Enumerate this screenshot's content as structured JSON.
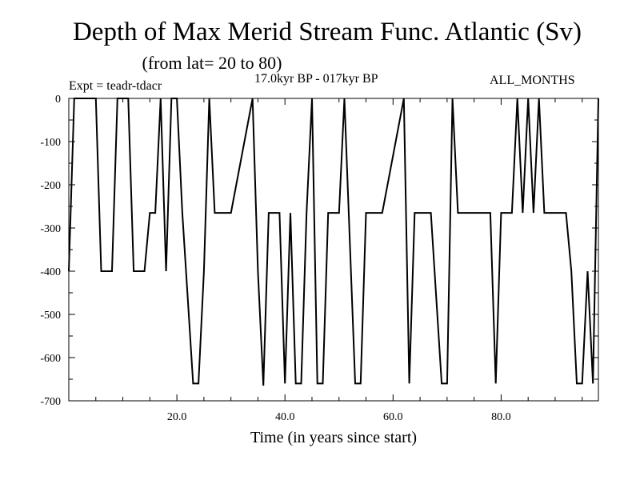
{
  "chart_data": {
    "type": "line",
    "title": "Depth of Max Merid Stream Func. Atlantic (Sv)",
    "subtitle": "(from lat= 20 to 80)",
    "experiment": "Expt = teadr-tdacr",
    "period": "17.0kyr BP - 017kyr BP",
    "months": "ALL_MONTHS",
    "xlabel": "Time (in years since start)",
    "ylabel": "",
    "xlim": [
      0,
      98
    ],
    "ylim": [
      -700,
      0
    ],
    "x_ticks": [
      20,
      40,
      60,
      80
    ],
    "x_tick_labels": [
      "20.0",
      "40.0",
      "60.0",
      "80.0"
    ],
    "y_ticks": [
      0,
      -100,
      -200,
      -300,
      -400,
      -500,
      -600,
      -700
    ],
    "y_tick_labels": [
      "0",
      "-100",
      "-200",
      "-300",
      "-400",
      "-500",
      "-600",
      "-700"
    ],
    "grid": false,
    "series": [
      {
        "color": "#000000",
        "x": [
          0,
          1,
          5,
          6,
          7,
          8,
          9,
          11,
          12,
          13,
          14,
          15,
          16,
          17,
          18,
          19,
          20,
          21,
          22,
          23,
          24,
          25,
          26,
          27,
          28,
          29,
          30,
          34,
          35,
          36,
          37,
          38,
          39,
          40,
          41,
          42,
          43,
          44,
          45,
          46,
          47,
          48,
          49,
          50,
          51,
          53,
          54,
          55,
          56,
          57,
          58,
          62,
          63,
          64,
          65,
          66,
          67,
          69,
          70,
          71,
          72,
          73,
          77,
          78,
          79,
          80,
          82,
          83,
          84,
          85,
          86,
          87,
          88,
          91,
          92,
          93,
          94,
          95,
          96,
          97,
          98
        ],
        "y": [
          -400,
          0,
          0,
          -400,
          -400,
          -400,
          0,
          0,
          -400,
          -400,
          -400,
          -265,
          -265,
          0,
          -400,
          0,
          0,
          -265,
          -460,
          -660,
          -660,
          -400,
          0,
          -265,
          -265,
          -265,
          -265,
          0,
          -400,
          -665,
          -265,
          -265,
          -265,
          -660,
          -265,
          -660,
          -660,
          -265,
          0,
          -660,
          -660,
          -265,
          -265,
          -265,
          0,
          -660,
          -660,
          -265,
          -265,
          -265,
          -265,
          0,
          -660,
          -265,
          -265,
          -265,
          -265,
          -660,
          -660,
          0,
          -265,
          -265,
          -265,
          -265,
          -660,
          -265,
          -265,
          0,
          -265,
          0,
          -265,
          0,
          -265,
          -265,
          -265,
          -400,
          -660,
          -660,
          -400,
          -660,
          0
        ]
      }
    ]
  }
}
